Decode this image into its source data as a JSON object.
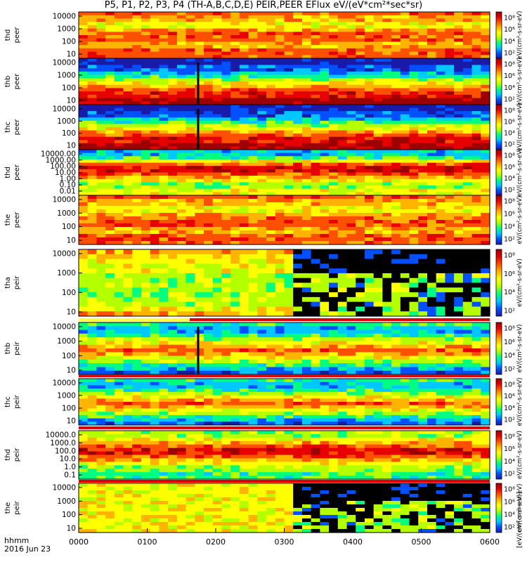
{
  "title": "P5, P1, P2, P3, P4 (TH-A,B,C,D,E) PEIR,PEER EFlux eV/(eV*cm²*sec*sr)",
  "footer": {
    "line1": "hhmm",
    "line2": "2016 Jun 23"
  },
  "x_ticks": [
    "0000",
    "0100",
    "0200",
    "0300",
    "0400",
    "0500",
    "0600"
  ],
  "colorbar_unit_label": "[eV/(cm²-s-sr-eV)]",
  "colorbar_side_label_repeated": "eV/(cm²-s-sr-eV)",
  "chart_data": {
    "type": "heatmap",
    "x_range": [
      "0000",
      "0600"
    ],
    "panels": [
      {
        "name": "thd peer",
        "y_ticks": [
          "10",
          "100",
          "1000",
          "10000"
        ],
        "cbar_ticks": [
          "10²",
          "10⁴",
          "10⁶",
          "10⁸"
        ]
      },
      {
        "name": "thb peer",
        "y_ticks": [
          "10",
          "100",
          "1000",
          "10000"
        ],
        "cbar_ticks": [
          "10²",
          "10⁴",
          "10⁶",
          "10⁸"
        ]
      },
      {
        "name": "thc peer",
        "y_ticks": [
          "10",
          "100",
          "1000",
          "10000"
        ],
        "cbar_ticks": [
          "10²",
          "10⁴",
          "10⁶",
          "10⁸"
        ]
      },
      {
        "name": "thd peer",
        "y_ticks": [
          "0.01",
          "0.10",
          "1.00",
          "10.00",
          "100.00",
          "1000.00",
          "10000.00"
        ],
        "cbar_ticks": [
          "10²",
          "10⁴",
          "10⁶",
          "10⁸"
        ]
      },
      {
        "name": "the peer",
        "y_ticks": [
          "10",
          "100",
          "1000",
          "10000"
        ],
        "cbar_ticks": [
          "10²",
          "10⁴",
          "10⁶",
          "10⁸"
        ]
      },
      {
        "name": "tha peir",
        "y_ticks": [
          "10",
          "100",
          "1000",
          "10000"
        ],
        "cbar_ticks": [
          "10²",
          "10⁴",
          "10⁶",
          "10⁸"
        ]
      },
      {
        "name": "thb peir",
        "y_ticks": [
          "10",
          "100",
          "1000",
          "10000"
        ],
        "cbar_ticks": [
          "10²",
          "10⁴",
          "10⁶",
          "10⁸"
        ]
      },
      {
        "name": "thc peir",
        "y_ticks": [
          "10",
          "100",
          "1000",
          "10000"
        ],
        "cbar_ticks": [
          "10²",
          "10⁴",
          "10⁶",
          "10⁸"
        ]
      },
      {
        "name": "thd peir",
        "y_ticks": [
          "0.1",
          "1.0",
          "10.0",
          "100.0",
          "1000.0",
          "10000.0"
        ],
        "cbar_ticks": [
          "10²",
          "10⁴",
          "10⁶",
          "10⁸"
        ]
      },
      {
        "name": "the peir",
        "y_ticks": [
          "10",
          "100",
          "1000",
          "10000"
        ],
        "cbar_ticks": [
          "10²",
          "10⁴",
          "10⁶",
          "10⁸"
        ]
      }
    ],
    "colorscale": [
      "#1a1aa8",
      "#0050ff",
      "#00c8ff",
      "#00ff80",
      "#b4ff00",
      "#ffff00",
      "#ffb400",
      "#ff5000",
      "#e60000",
      "#9c0000"
    ]
  }
}
